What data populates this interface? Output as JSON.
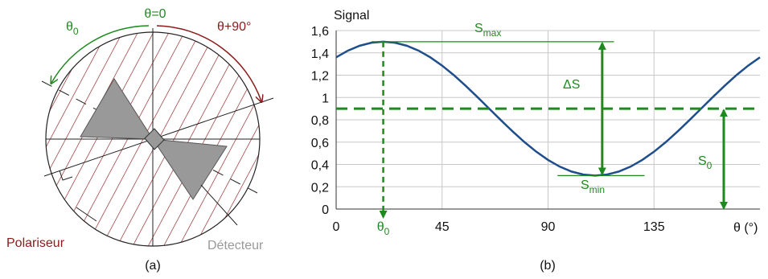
{
  "diagram": {
    "angle_zero": "θ=0",
    "angle_start": {
      "text": "θ",
      "sub": "0"
    },
    "angle_ninety": "θ+90°",
    "polarizer": "Polariseur",
    "detector": "Détecteur",
    "caption": "(a)"
  },
  "chart_data": {
    "type": "line",
    "caption": "(b)",
    "y_label": "Signal",
    "x_label": "θ (°)",
    "color": "#1f4e8c",
    "grid": true,
    "x": [
      0,
      5,
      10,
      15,
      20,
      25,
      30,
      35,
      40,
      45,
      50,
      55,
      60,
      65,
      70,
      75,
      80,
      85,
      90,
      95,
      100,
      105,
      110,
      115,
      120,
      125,
      130,
      135,
      140,
      145,
      150,
      155,
      160,
      165,
      170,
      175,
      180
    ],
    "values": [
      1.36,
      1.42,
      1.464,
      1.491,
      1.5,
      1.491,
      1.464,
      1.42,
      1.36,
      1.286,
      1.2,
      1.105,
      1.004,
      0.9,
      0.796,
      0.695,
      0.6,
      0.514,
      0.44,
      0.38,
      0.336,
      0.309,
      0.3,
      0.309,
      0.336,
      0.38,
      0.44,
      0.514,
      0.6,
      0.695,
      0.796,
      0.9,
      1.004,
      1.105,
      1.2,
      1.286,
      1.36
    ],
    "xlim": [
      0,
      180
    ],
    "xticks": [
      0,
      45,
      90,
      135
    ],
    "ylim": [
      0,
      1.6
    ],
    "yticks": [
      0,
      {
        "value": 0.2,
        "label": "0,2"
      },
      {
        "value": 0.4,
        "label": "0,4"
      },
      {
        "value": 0.6,
        "label": "0,6"
      },
      {
        "value": 0.8,
        "label": "0,8"
      },
      1,
      {
        "value": 1.2,
        "label": "1,2"
      },
      {
        "value": 1.4,
        "label": "1,4"
      },
      {
        "value": 1.6,
        "label": "1,6"
      }
    ],
    "annotation_color": "#1e8a1e",
    "annotations": {
      "smax": {
        "text": "S",
        "sub": "max",
        "value": 1.5
      },
      "smin": {
        "text": "S",
        "sub": "min",
        "value": 0.3
      },
      "delta_s": {
        "text": "ΔS"
      },
      "s0": {
        "text": "S",
        "sub": "0",
        "value": 0.9
      },
      "theta0": {
        "text": "θ",
        "sub": "0",
        "value": 20
      }
    }
  }
}
